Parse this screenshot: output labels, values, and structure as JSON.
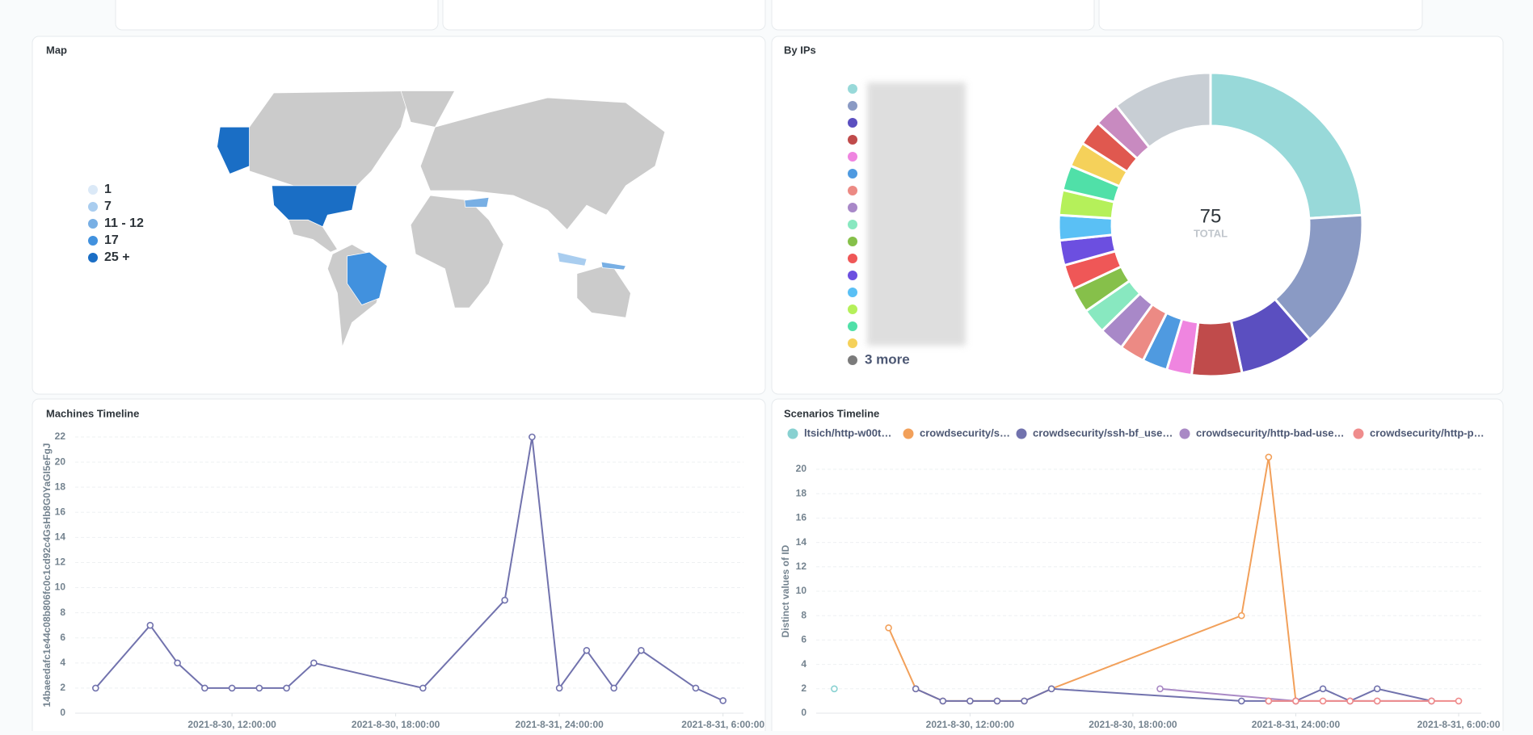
{
  "chart_data": [
    {
      "type": "map",
      "title": "Map",
      "legend": [
        {
          "label": "1",
          "color": "#dbe9f7"
        },
        {
          "label": "7",
          "color": "#a9cdef"
        },
        {
          "label": "11 - 12",
          "color": "#78afe4"
        },
        {
          "label": "17",
          "color": "#4191de"
        },
        {
          "label": "25 +",
          "color": "#1a6ec5"
        }
      ]
    },
    {
      "type": "donut",
      "title": "By IPs",
      "total": 75,
      "total_label": "TOTAL",
      "more_label": "3 more",
      "values": [
        18,
        11,
        6,
        4,
        2,
        2,
        2,
        2,
        2,
        2,
        2,
        2,
        2,
        2,
        2,
        2,
        2,
        2,
        8
      ],
      "colors": [
        "#98d9d9",
        "#8a9ac4",
        "#5b4fc0",
        "#c04b4b",
        "#ef85e0",
        "#4f9ae0",
        "#ec8a84",
        "#a888c8",
        "#88e8c0",
        "#86c04a",
        "#ef5757",
        "#6c4fe0",
        "#5ac0f5",
        "#b5f05a",
        "#50e0a8",
        "#f5d15a",
        "#e0584f",
        "#c88ac0",
        "#c8ced4"
      ]
    },
    {
      "type": "line",
      "title": "Machines Timeline",
      "y_label": "14baeedafc1e44c08b806fc0c1cd92c4GsHb8G0YaGI5eFgJ",
      "grid": true,
      "x": [
        "2021-08-30T07:00:00",
        "2021-08-30T09:00:00",
        "2021-08-30T10:00:00",
        "2021-08-30T11:00:00",
        "2021-08-30T12:00:00",
        "2021-08-30T13:00:00",
        "2021-08-30T14:00:00",
        "2021-08-30T15:00:00",
        "2021-08-30T19:00:00",
        "2021-08-30T22:00:00",
        "2021-08-30T23:00:00",
        "2021-08-31T00:00:00",
        "2021-08-31T01:00:00",
        "2021-08-31T02:00:00",
        "2021-08-31T03:00:00",
        "2021-08-31T05:00:00",
        "2021-08-31T06:00:00"
      ],
      "series": [
        {
          "color": "#7172ad",
          "values": [
            2,
            7,
            4,
            2,
            2,
            2,
            2,
            4,
            2,
            9,
            22,
            2,
            5,
            2,
            5,
            2,
            1
          ]
        }
      ],
      "xlim": [
        "2021-08-30T06:15:00",
        "2021-08-31T06:45:00"
      ],
      "xticks": [
        {
          "value": "2021-08-30T12:00:00",
          "label": "2021-8-30, 12:00:00"
        },
        {
          "value": "2021-08-30T18:00:00",
          "label": "2021-8-30, 18:00:00"
        },
        {
          "value": "2021-08-31T00:00:00",
          "label": "2021-8-31, 24:00:00"
        },
        {
          "value": "2021-08-31T06:00:00",
          "label": "2021-8-31, 6:00:00"
        }
      ],
      "ylim": [
        0,
        22
      ],
      "yticks": [
        0,
        2,
        4,
        6,
        8,
        10,
        12,
        14,
        16,
        18,
        20,
        22
      ]
    },
    {
      "type": "line",
      "title": "Scenarios Timeline",
      "y_label": "Distinct values of ID",
      "grid": true,
      "series": [
        {
          "name": "ltsich/http-w00t…",
          "color": "#88d1d1",
          "x": [
            "2021-08-30T07:00:00"
          ],
          "values": [
            2
          ]
        },
        {
          "name": "crowdsecurity/s…",
          "color": "#f2a05a",
          "x": [
            "2021-08-30T09:00:00",
            "2021-08-30T10:00:00",
            "2021-08-30T11:00:00",
            "2021-08-30T12:00:00",
            "2021-08-30T13:00:00",
            "2021-08-30T14:00:00",
            "2021-08-30T15:00:00",
            "2021-08-30T22:00:00",
            "2021-08-30T23:00:00",
            "2021-08-31T00:00:00"
          ],
          "values": [
            7,
            2,
            1,
            1,
            1,
            1,
            2,
            8,
            21,
            1
          ]
        },
        {
          "name": "crowdsecurity/ssh-bf_use…",
          "color": "#7172ad",
          "x": [
            "2021-08-30T10:00:00",
            "2021-08-30T11:00:00",
            "2021-08-30T12:00:00",
            "2021-08-30T13:00:00",
            "2021-08-30T14:00:00",
            "2021-08-30T15:00:00",
            "2021-08-30T22:00:00",
            "2021-08-30T23:00:00",
            "2021-08-31T00:00:00",
            "2021-08-31T01:00:00",
            "2021-08-31T02:00:00",
            "2021-08-31T03:00:00",
            "2021-08-31T05:00:00"
          ],
          "values": [
            2,
            1,
            1,
            1,
            1,
            2,
            1,
            1,
            1,
            2,
            1,
            2,
            1
          ]
        },
        {
          "name": "crowdsecurity/http-bad-use…",
          "color": "#a989c5",
          "x": [
            "2021-08-30T19:00:00",
            "2021-08-31T00:00:00",
            "2021-08-31T02:00:00",
            "2021-08-31T03:00:00",
            "2021-08-31T05:00:00"
          ],
          "values": [
            2,
            1,
            1,
            1,
            1
          ]
        },
        {
          "name": "crowdsecurity/http-p…",
          "color": "#ef8c8c",
          "x": [
            "2021-08-30T23:00:00",
            "2021-08-31T00:00:00",
            "2021-08-31T01:00:00",
            "2021-08-31T02:00:00",
            "2021-08-31T03:00:00",
            "2021-08-31T05:00:00",
            "2021-08-31T06:00:00"
          ],
          "values": [
            1,
            1,
            1,
            1,
            1,
            1,
            1
          ]
        }
      ],
      "xlim": [
        "2021-08-30T06:20:00",
        "2021-08-31T06:50:00"
      ],
      "xticks": [
        {
          "value": "2021-08-30T12:00:00",
          "label": "2021-8-30, 12:00:00"
        },
        {
          "value": "2021-08-30T18:00:00",
          "label": "2021-8-30, 18:00:00"
        },
        {
          "value": "2021-08-31T00:00:00",
          "label": "2021-8-31, 24:00:00"
        },
        {
          "value": "2021-08-31T06:00:00",
          "label": "2021-8-31, 6:00:00"
        }
      ],
      "ylim": [
        0,
        20
      ],
      "yticks": [
        0,
        2,
        4,
        6,
        8,
        10,
        12,
        14,
        16,
        18,
        20
      ]
    }
  ]
}
